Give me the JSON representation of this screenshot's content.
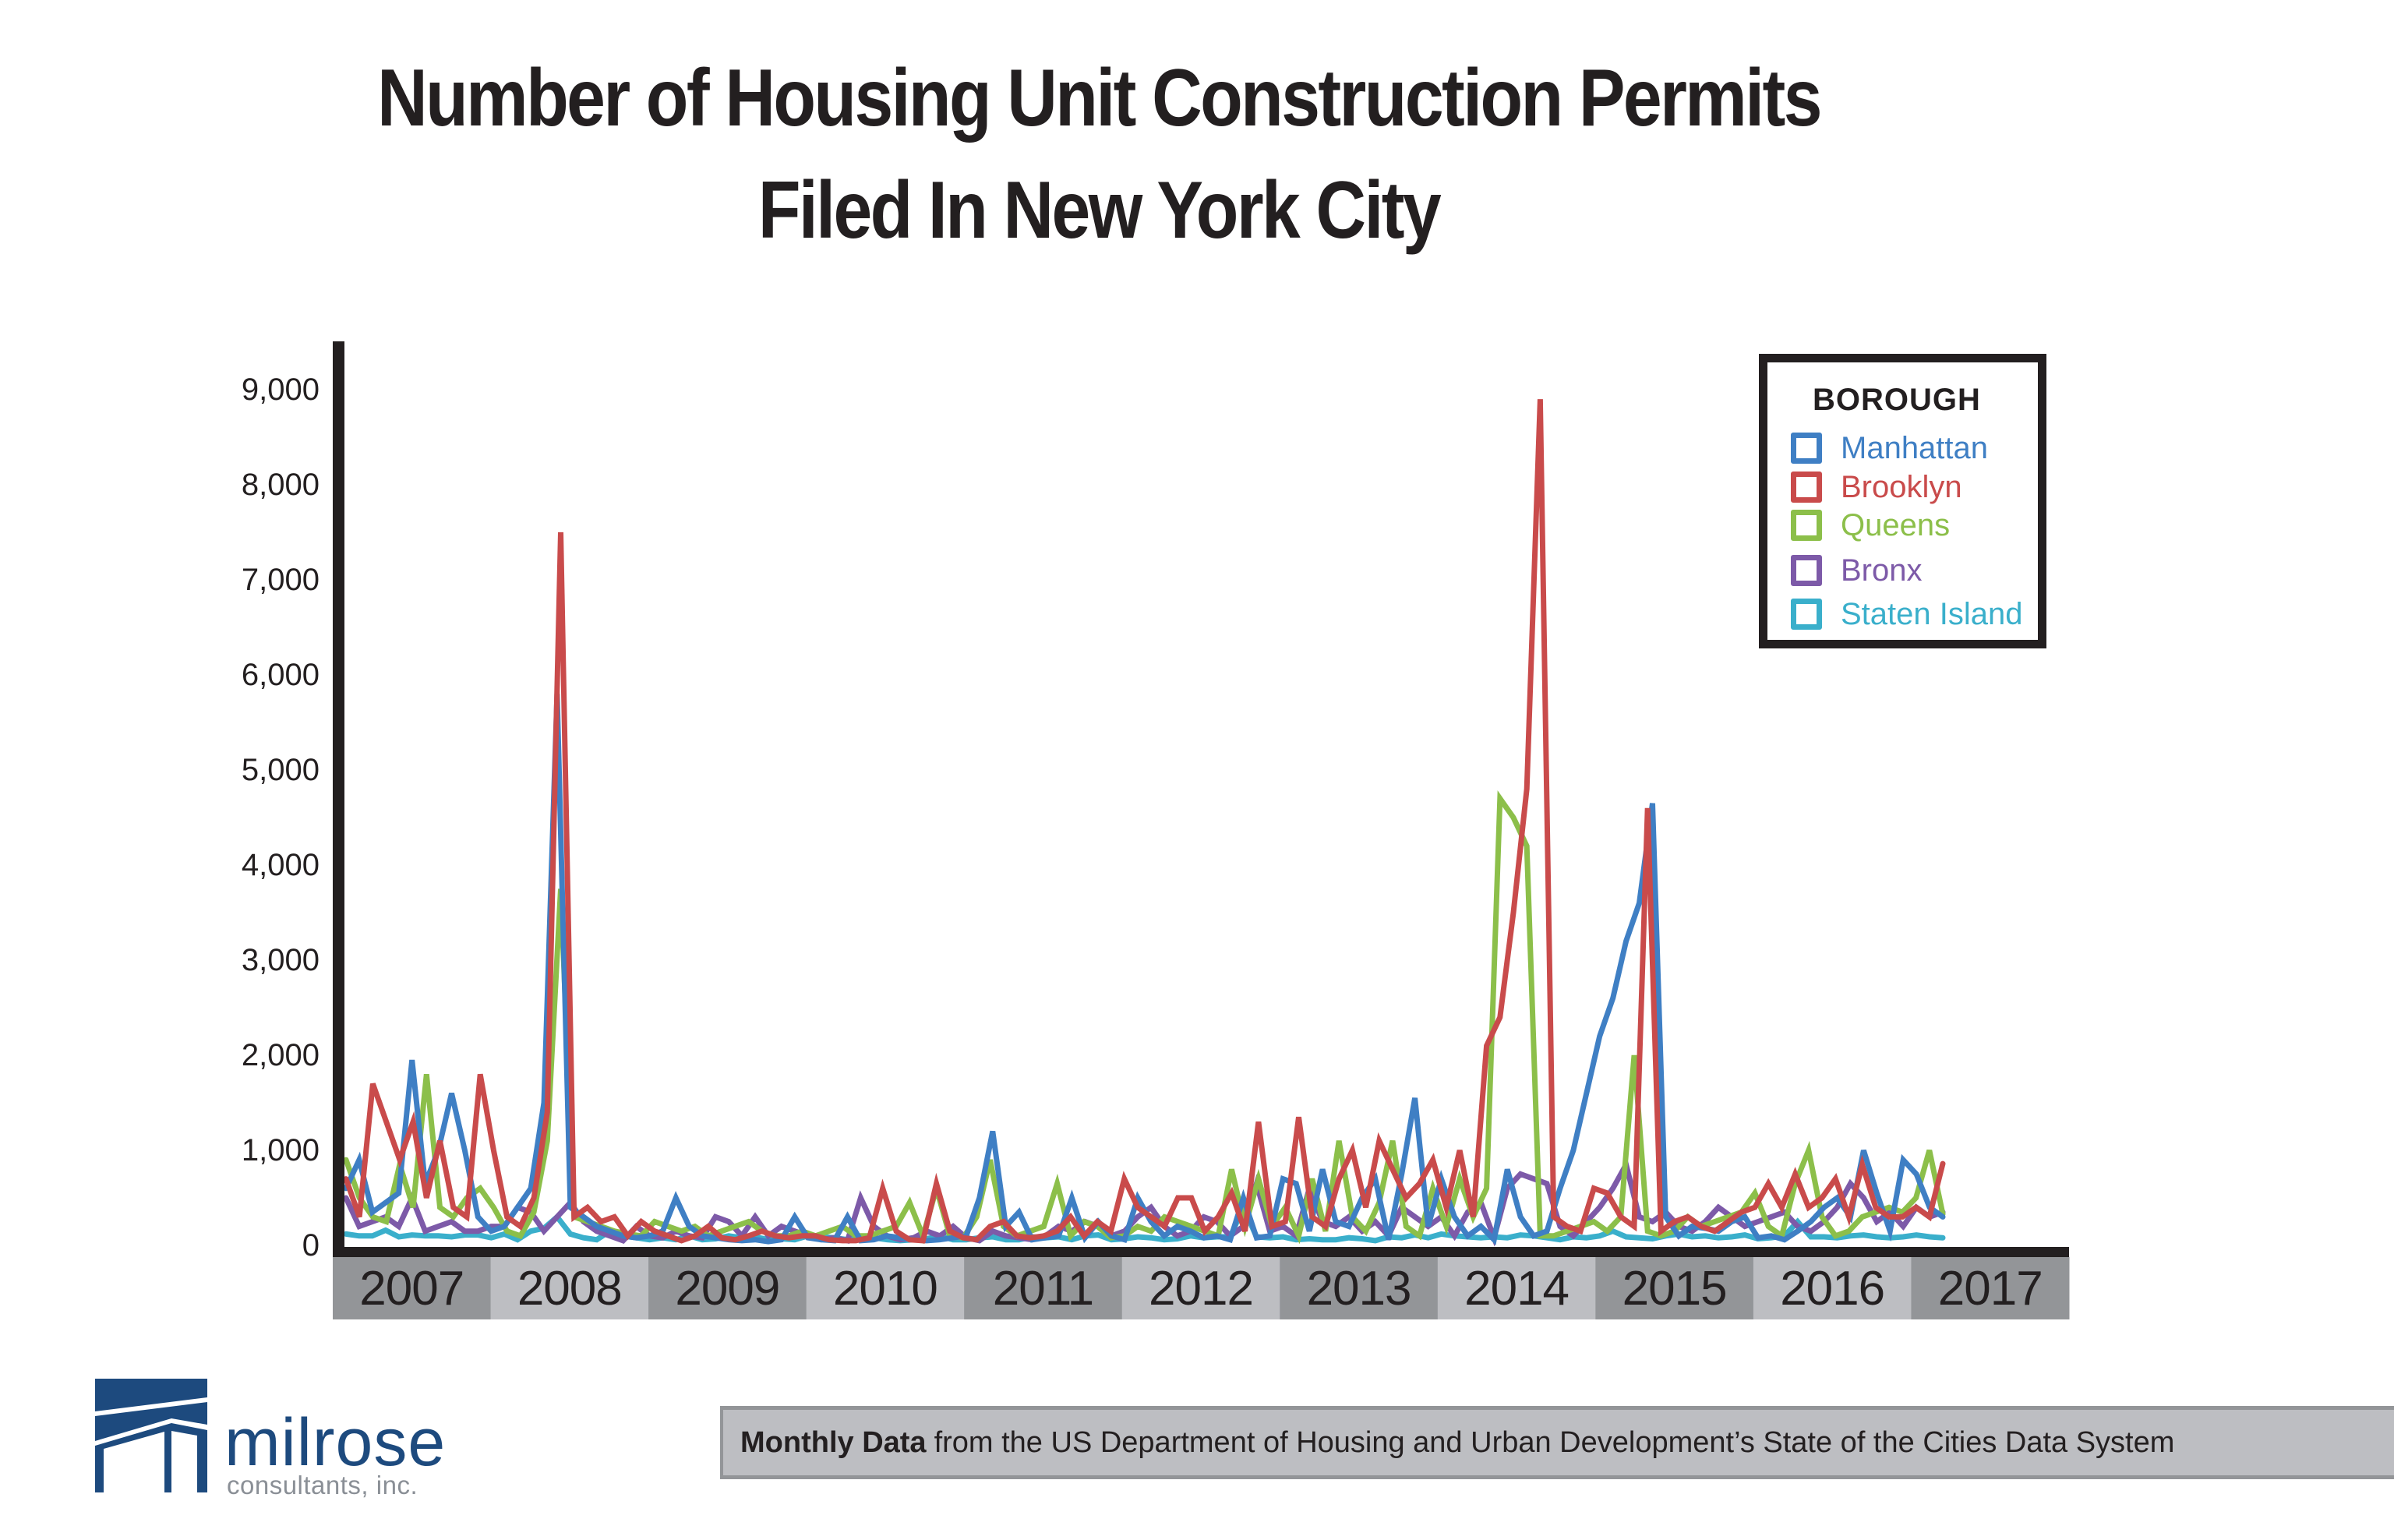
{
  "header": {
    "title_line1": "Number of Housing Unit Construction Permits",
    "title_line2": "Filed In New York City"
  },
  "legend": {
    "title": "BOROUGH",
    "items": [
      {
        "label": "Manhattan",
        "color": "#3f7fc4"
      },
      {
        "label": "Brooklyn",
        "color": "#c94b4b"
      },
      {
        "label": "Queens",
        "color": "#8cbf4a"
      },
      {
        "label": "Bronx",
        "color": "#7d5aa8"
      },
      {
        "label": "Staten Island",
        "color": "#3aafcb"
      }
    ]
  },
  "footer": {
    "logo_word": "milrose",
    "logo_sub": "consultants, inc.",
    "source_bold": "Monthly Data",
    "source_rest": "from the US Department of Housing and Urban Development’s State of the Cities Data System"
  },
  "colors": {
    "axis": "#231f20",
    "band_dark": "#939598",
    "band_light": "#bdbec2",
    "logo_blue": "#1d4a7e"
  },
  "chart_data": {
    "type": "line",
    "title": "Number of Housing Unit Construction Permits Filed In New York City",
    "xlabel": "",
    "ylabel": "",
    "ylim": [
      0,
      9000
    ],
    "yticks": [
      "0",
      "1,000",
      "2,000",
      "3,000",
      "4,000",
      "5,000",
      "6,000",
      "7,000",
      "8,000",
      "9,000"
    ],
    "ytick_values": [
      0,
      1000,
      2000,
      3000,
      4000,
      5000,
      6000,
      7000,
      8000,
      9000
    ],
    "x_categories": [
      "2007",
      "2008",
      "2009",
      "2010",
      "2011",
      "2012",
      "2013",
      "2014",
      "2015",
      "2016",
      "2017"
    ],
    "x_start": "Jan 2007",
    "x_end": "Feb 2017",
    "frequency": "monthly",
    "grid": false,
    "legend_position": "top-right",
    "series": [
      {
        "name": "Manhattan",
        "color": "#3f7fc4",
        "values": [
          600,
          900,
          350,
          450,
          550,
          1950,
          650,
          1000,
          1600,
          1000,
          300,
          150,
          200,
          400,
          600,
          1500,
          5800,
          400,
          300,
          200,
          150,
          100,
          80,
          100,
          150,
          500,
          200,
          100,
          80,
          60,
          50,
          60,
          40,
          60,
          300,
          80,
          60,
          50,
          300,
          50,
          60,
          100,
          80,
          60,
          50,
          60,
          80,
          100,
          500,
          1200,
          200,
          350,
          60,
          80,
          100,
          500,
          80,
          250,
          100,
          60,
          500,
          250,
          100,
          200,
          150,
          80,
          100,
          60,
          500,
          80,
          100,
          700,
          650,
          150,
          800,
          250,
          200,
          500,
          700,
          60,
          750,
          1550,
          200,
          700,
          300,
          100,
          200,
          60,
          800,
          300,
          100,
          150,
          600,
          1000,
          1600,
          2200,
          2600,
          3200,
          3600,
          4650,
          300,
          100,
          200,
          180,
          150,
          250,
          300,
          80,
          100,
          60,
          150,
          250,
          400,
          500,
          300,
          1000,
          550,
          150,
          900,
          750,
          400,
          300
        ]
      },
      {
        "name": "Brooklyn",
        "color": "#c94b4b",
        "values": [
          700,
          300,
          1700,
          1300,
          900,
          1300,
          500,
          1100,
          400,
          300,
          1800,
          1000,
          300,
          200,
          500,
          1400,
          7500,
          300,
          400,
          250,
          300,
          100,
          250,
          150,
          100,
          50,
          100,
          200,
          80,
          60,
          100,
          150,
          100,
          80,
          100,
          100,
          60,
          50,
          50,
          80,
          600,
          150,
          60,
          50,
          650,
          150,
          80,
          60,
          200,
          250,
          100,
          80,
          100,
          150,
          300,
          100,
          250,
          150,
          700,
          400,
          300,
          200,
          500,
          500,
          150,
          300,
          550,
          150,
          1300,
          200,
          250,
          1350,
          300,
          200,
          700,
          1000,
          400,
          1100,
          800,
          500,
          650,
          900,
          400,
          1000,
          300,
          2100,
          2400,
          3500,
          4800,
          8900,
          300,
          200,
          150,
          600,
          550,
          300,
          200,
          4600,
          150,
          250,
          300,
          200,
          150,
          250,
          350,
          400,
          650,
          400,
          750,
          400,
          500,
          700,
          300,
          850,
          400,
          300,
          300,
          400,
          300,
          860
        ]
      },
      {
        "name": "Queens",
        "color": "#8cbf4a",
        "values": [
          900,
          500,
          300,
          250,
          850,
          400,
          1800,
          400,
          300,
          500,
          600,
          400,
          150,
          100,
          350,
          1100,
          3750,
          300,
          250,
          200,
          150,
          120,
          100,
          250,
          200,
          150,
          200,
          100,
          150,
          200,
          250,
          150,
          100,
          100,
          150,
          100,
          150,
          200,
          100,
          100,
          150,
          200,
          450,
          100,
          600,
          100,
          80,
          300,
          900,
          200,
          100,
          150,
          200,
          650,
          100,
          250,
          200,
          80,
          100,
          200,
          150,
          300,
          250,
          200,
          150,
          100,
          800,
          200,
          700,
          200,
          400,
          100,
          700,
          150,
          1100,
          300,
          150,
          450,
          1100,
          200,
          100,
          600,
          200,
          700,
          300,
          600,
          4700,
          4500,
          4200,
          100,
          100,
          150,
          200,
          250,
          150,
          300,
          2000,
          150,
          100,
          150,
          300,
          200,
          250,
          300,
          350,
          550,
          200,
          100,
          650,
          1000,
          300,
          100,
          150,
          300,
          350,
          400,
          350,
          500,
          1000,
          330
        ]
      },
      {
        "name": "Bronx",
        "color": "#7d5aa8",
        "values": [
          500,
          200,
          250,
          300,
          200,
          500,
          150,
          200,
          250,
          150,
          150,
          200,
          200,
          400,
          350,
          150,
          300,
          450,
          250,
          150,
          100,
          50,
          200,
          100,
          80,
          150,
          100,
          80,
          300,
          250,
          100,
          300,
          100,
          200,
          150,
          100,
          60,
          80,
          50,
          500,
          200,
          100,
          60,
          80,
          150,
          100,
          200,
          80,
          50,
          150,
          100,
          80,
          60,
          100,
          200,
          150,
          250,
          200,
          100,
          150,
          300,
          400,
          200,
          100,
          150,
          300,
          250,
          100,
          200,
          650,
          150,
          200,
          100,
          600,
          250,
          200,
          300,
          150,
          250,
          100,
          400,
          300,
          200,
          300,
          100,
          350,
          450,
          80,
          600,
          750,
          700,
          650,
          200,
          100,
          250,
          400,
          600,
          850,
          300,
          250,
          350,
          200,
          150,
          250,
          400,
          300,
          200,
          250,
          300,
          350,
          200,
          150,
          250,
          400,
          650,
          500,
          250,
          350,
          200,
          400,
          300,
          350
        ]
      },
      {
        "name": "Staten Island",
        "color": "#3aafcb",
        "values": [
          120,
          100,
          100,
          160,
          90,
          110,
          100,
          100,
          90,
          110,
          110,
          80,
          120,
          60,
          150,
          180,
          300,
          120,
          80,
          60,
          150,
          100,
          80,
          60,
          80,
          60,
          100,
          60,
          70,
          100,
          80,
          90,
          60,
          70,
          60,
          100,
          90,
          80,
          60,
          90,
          80,
          60,
          50,
          60,
          70,
          100,
          60,
          60,
          80,
          90,
          60,
          60,
          90,
          80,
          90,
          60,
          100,
          110,
          60,
          70,
          90,
          80,
          60,
          70,
          100,
          80,
          90,
          90,
          400,
          90,
          80,
          90,
          60,
          70,
          60,
          60,
          80,
          70,
          50,
          90,
          80,
          110,
          80,
          120,
          100,
          90,
          80,
          90,
          80,
          110,
          100,
          80,
          60,
          90,
          80,
          100,
          150,
          90,
          80,
          70,
          100,
          120,
          90,
          100,
          80,
          90,
          110,
          70,
          80,
          100,
          250,
          90,
          90,
          80,
          100,
          110,
          90,
          80,
          90,
          110,
          90,
          80
        ]
      }
    ]
  }
}
